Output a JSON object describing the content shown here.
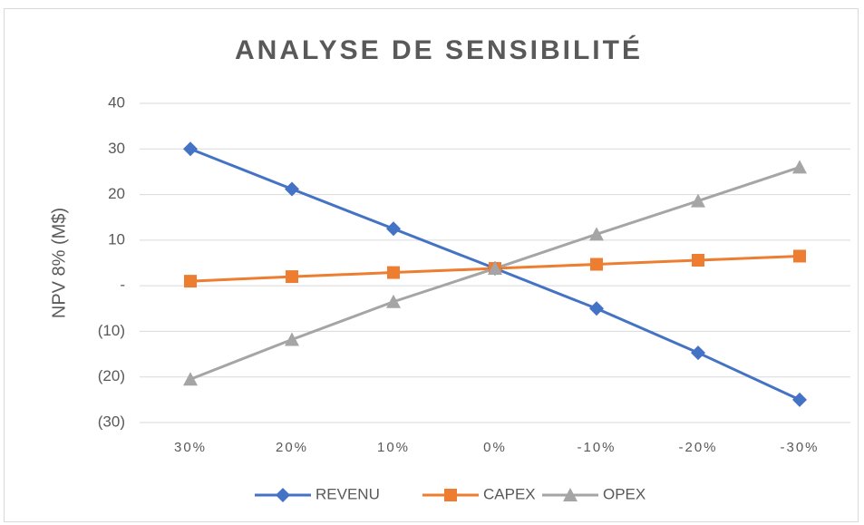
{
  "chart_data": {
    "type": "line",
    "title": "ANALYSE DE SENSIBILITÉ",
    "y_label": "NPV 8% (M$)",
    "categories": [
      "30%",
      "20%",
      "10%",
      "0%",
      "-10%",
      "-20%",
      "-30%"
    ],
    "series": [
      {
        "name": "REVENU",
        "color": "#4472c4",
        "marker": "diamond",
        "values": [
          30,
          21.2,
          12.5,
          3.8,
          -5,
          -14.7,
          -25
        ]
      },
      {
        "name": "CAPEX",
        "color": "#ed7d31",
        "marker": "square",
        "values": [
          1,
          2,
          2.9,
          3.8,
          4.7,
          5.6,
          6.5
        ]
      },
      {
        "name": "OPEX",
        "color": "#a5a5a5",
        "marker": "triangle",
        "values": [
          -20.5,
          -11.8,
          -3.5,
          3.8,
          11.3,
          18.6,
          26
        ]
      }
    ],
    "ylim": [
      -30,
      40
    ],
    "yticks": [
      {
        "value": -30,
        "label": "(30)"
      },
      {
        "value": -20,
        "label": "(20)"
      },
      {
        "value": -10,
        "label": "(10)"
      },
      {
        "value": 0,
        "label": "-"
      },
      10,
      20,
      30,
      40
    ],
    "grid": true,
    "legend": "bottom"
  }
}
